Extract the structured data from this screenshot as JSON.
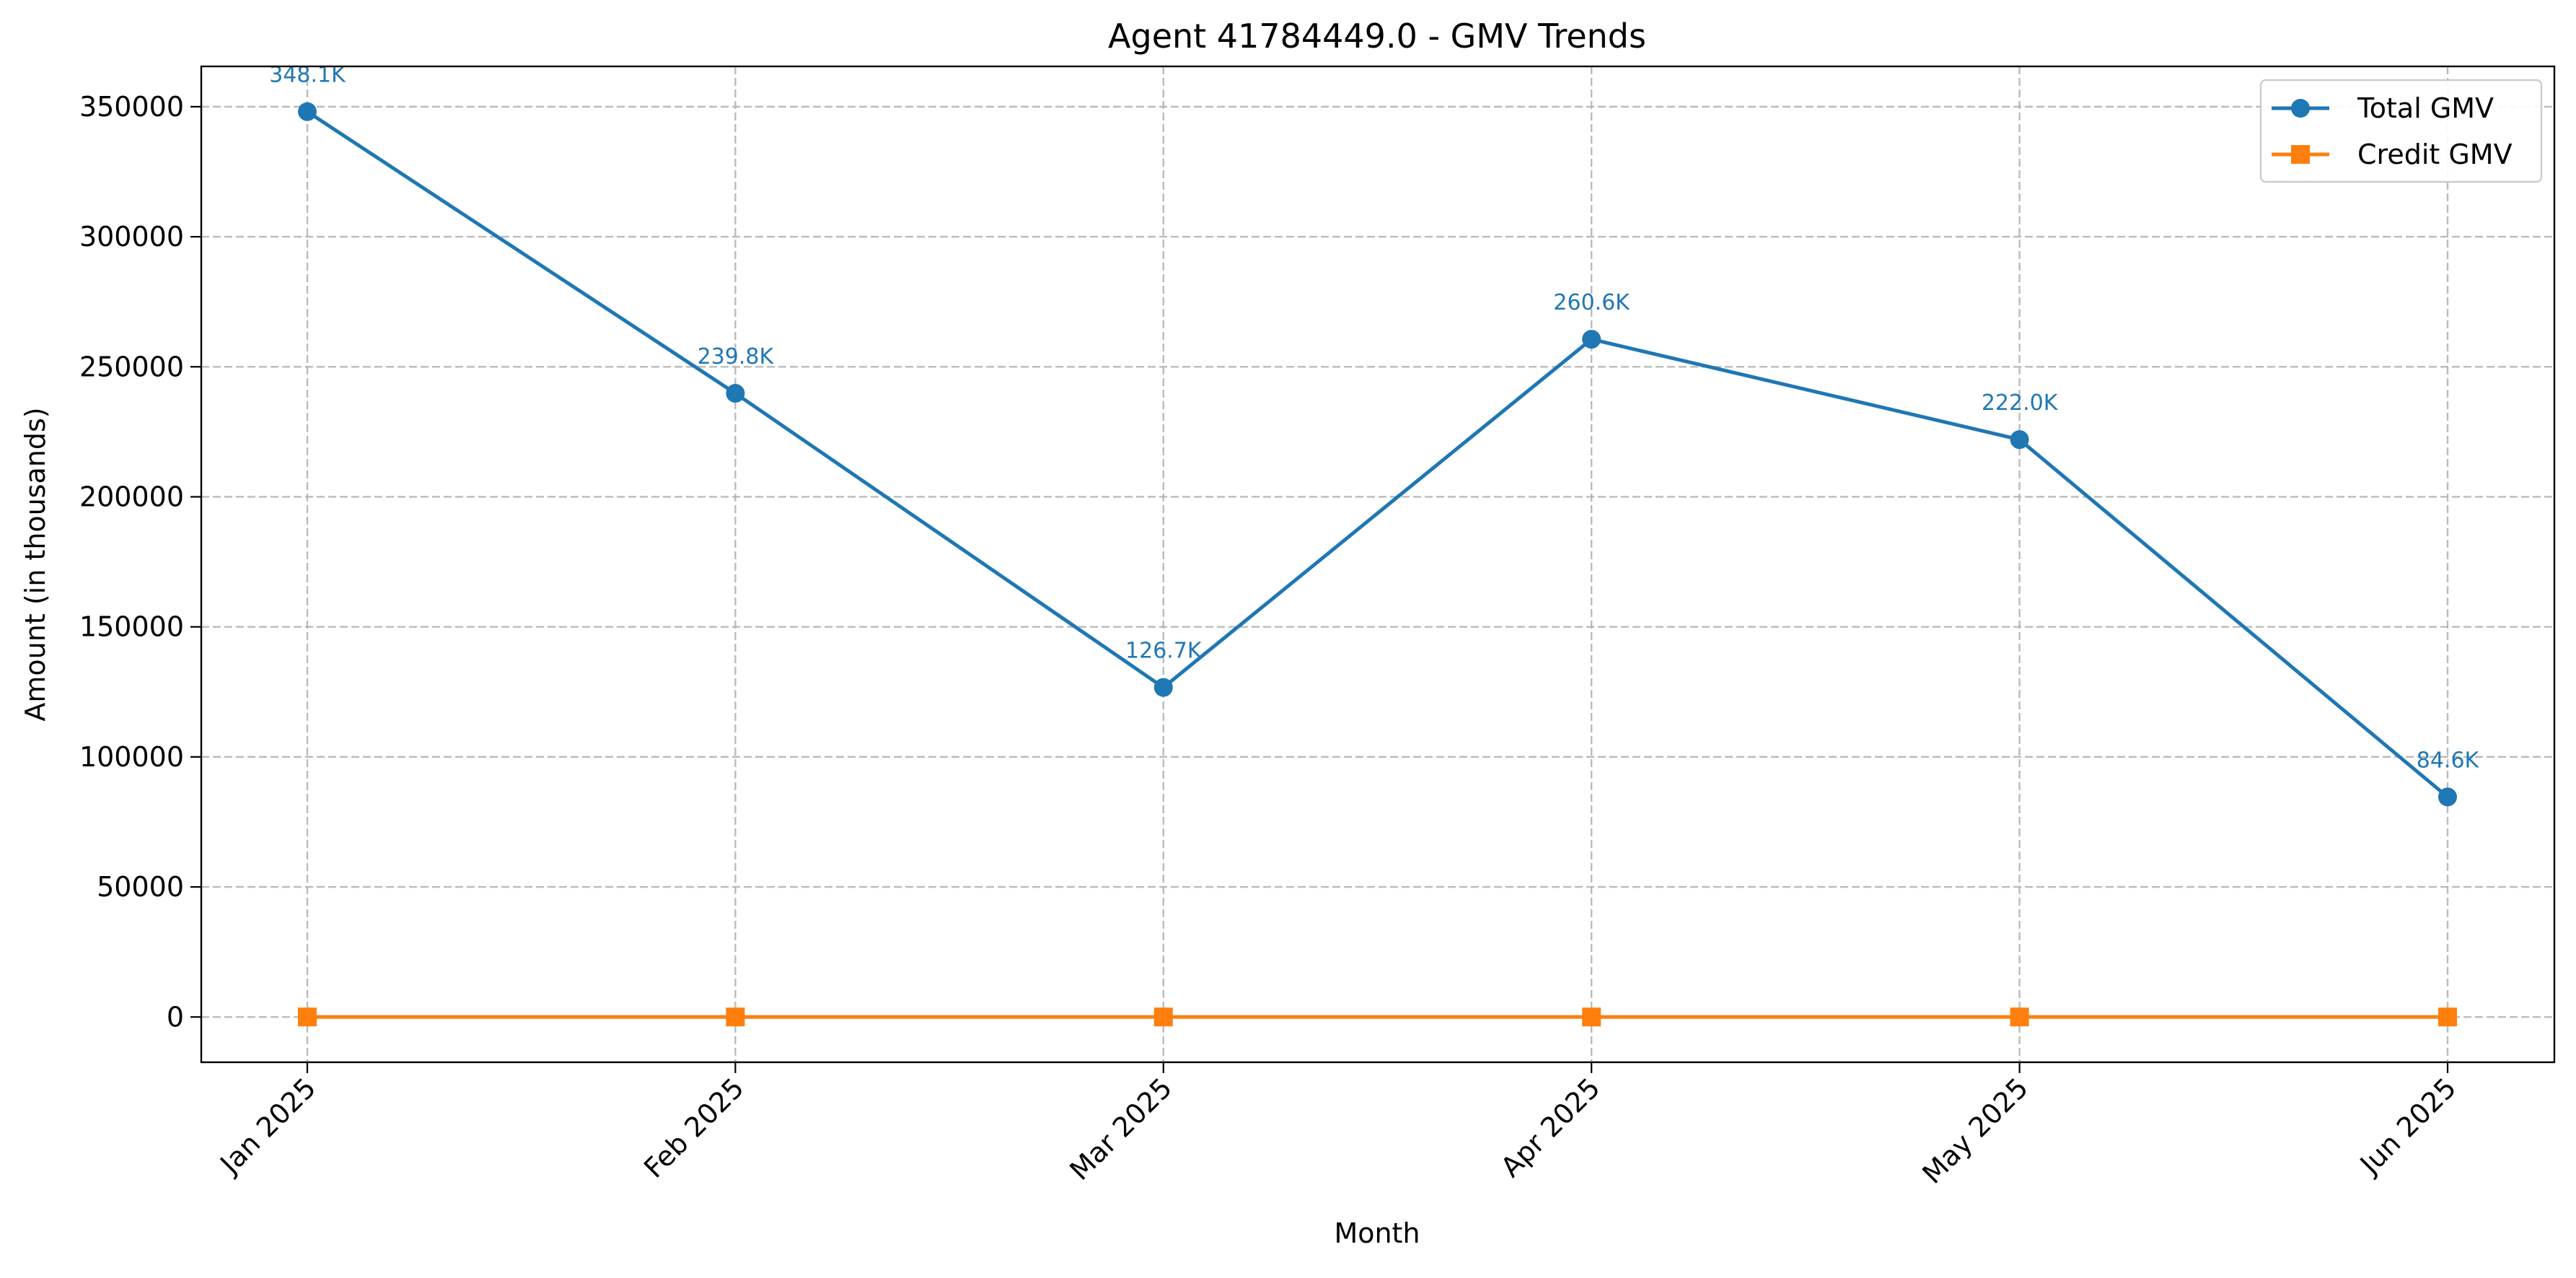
{
  "chart_data": {
    "type": "line",
    "title": "Agent 41784449.0 - GMV Trends",
    "xlabel": "Month",
    "ylabel": "Amount (in thousands)",
    "categories": [
      "Jan 2025",
      "Feb 2025",
      "Mar 2025",
      "Apr 2025",
      "May 2025",
      "Jun 2025"
    ],
    "ylim": [
      -17400,
      365500
    ],
    "yticks": [
      0,
      50000,
      100000,
      150000,
      200000,
      250000,
      300000,
      350000
    ],
    "ytick_labels": [
      "0",
      "50000",
      "100000",
      "150000",
      "200000",
      "250000",
      "300000",
      "350000"
    ],
    "grid": true,
    "legend_position": "top-right",
    "series": [
      {
        "name": "Total GMV",
        "values": [
          348100,
          239800,
          126700,
          260600,
          222000,
          84600
        ],
        "labels": [
          "348.1K",
          "239.8K",
          "126.7K",
          "260.6K",
          "222.0K",
          "84.6K"
        ],
        "color": "#1f77b4",
        "marker": "circle"
      },
      {
        "name": "Credit GMV",
        "values": [
          0,
          0,
          0,
          0,
          0,
          0
        ],
        "color": "#ff7f0e",
        "marker": "square"
      }
    ]
  }
}
